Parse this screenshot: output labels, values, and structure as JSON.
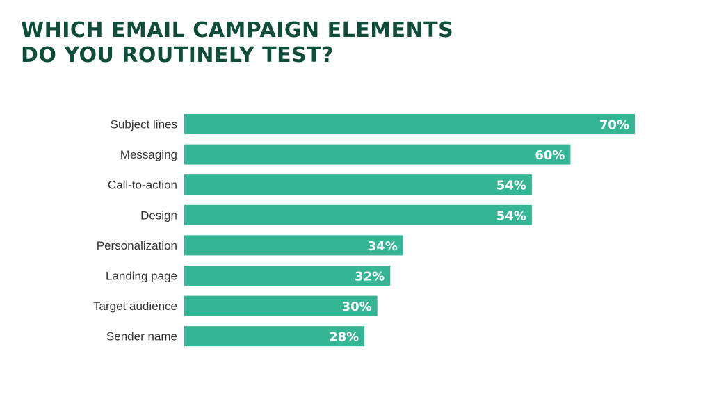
{
  "title_lines": [
    "WHICH EMAIL CAMPAIGN ELEMENTS",
    "DO YOU ROUTINELY TEST?"
  ],
  "colors": {
    "title": "#0f4d3b",
    "bar": "#34b594",
    "value_text": "#ffffff",
    "category_text": "#333333"
  },
  "chart_data": {
    "type": "bar",
    "orientation": "horizontal",
    "categories": [
      "Subject lines",
      "Messaging",
      "Call-to-action",
      "Design",
      "Personalization",
      "Landing page",
      "Target audience",
      "Sender name"
    ],
    "values": [
      70,
      60,
      54,
      54,
      34,
      32,
      30,
      28
    ],
    "value_labels": [
      "70%",
      "60%",
      "54%",
      "54%",
      "34%",
      "32%",
      "30%",
      "28%"
    ],
    "unit": "%",
    "xlim": [
      0,
      70
    ],
    "grid": false,
    "legend": "none"
  }
}
